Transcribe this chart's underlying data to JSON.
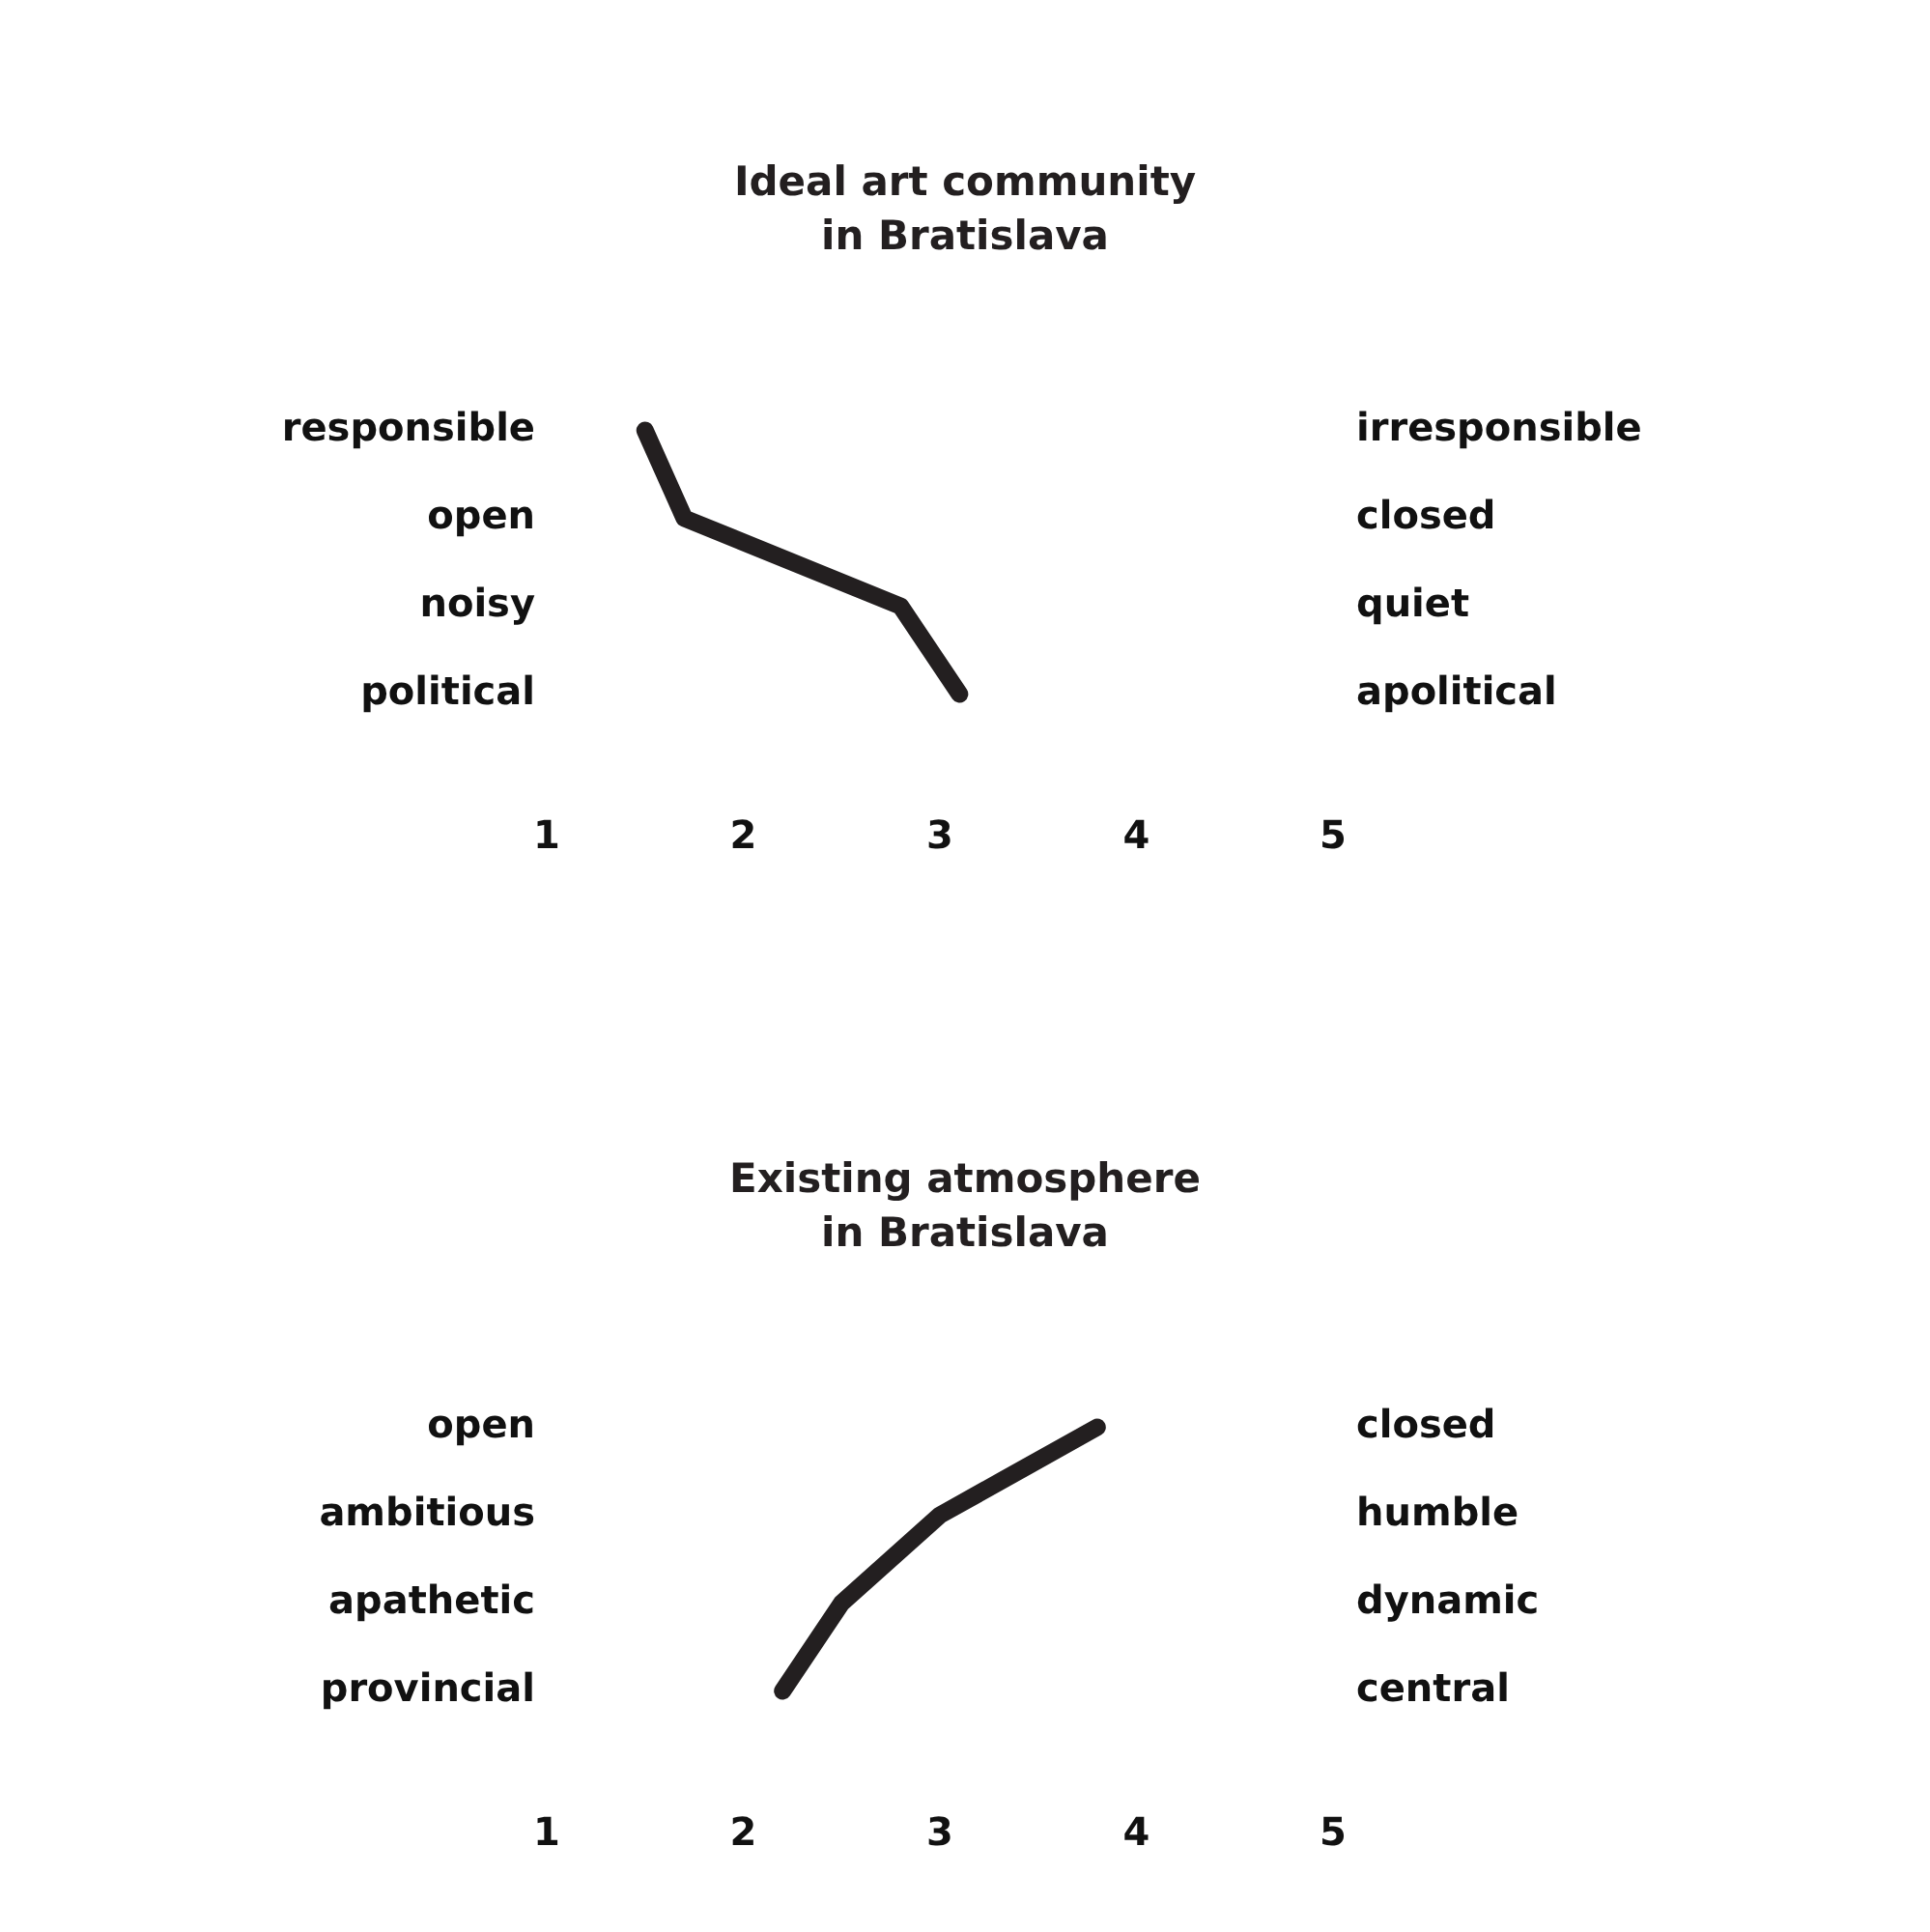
{
  "chart_data": [
    {
      "type": "line",
      "title": "Ideal art community\nin Bratislava",
      "orientation": "horizontal",
      "categories": [
        "responsible",
        "open",
        "noisy",
        "political"
      ],
      "y2_categories": [
        "irresponsible",
        "closed",
        "quiet",
        "apolitical"
      ],
      "series": [
        {
          "color": "#231f20",
          "values": [
            1.5,
            1.7,
            2.8,
            3.1
          ]
        }
      ],
      "xlim": [
        1,
        5
      ],
      "xticks": [
        1,
        2,
        3,
        4,
        5
      ],
      "grid": false,
      "legend": false,
      "marker": "none",
      "line_style": "solid"
    },
    {
      "type": "line",
      "title": "Existing atmosphere\nin Bratislava",
      "orientation": "horizontal",
      "categories": [
        "open",
        "ambitious",
        "apathetic",
        "provincial"
      ],
      "y2_categories": [
        "closed",
        "humble",
        "dynamic",
        "central"
      ],
      "series": [
        {
          "color": "#231f20",
          "values": [
            3.8,
            3.0,
            2.5,
            2.2
          ]
        }
      ],
      "xlim": [
        1,
        5
      ],
      "xticks": [
        1,
        2,
        3,
        4,
        5
      ],
      "grid": false,
      "legend": false,
      "marker": "none",
      "line_style": "solid"
    }
  ]
}
